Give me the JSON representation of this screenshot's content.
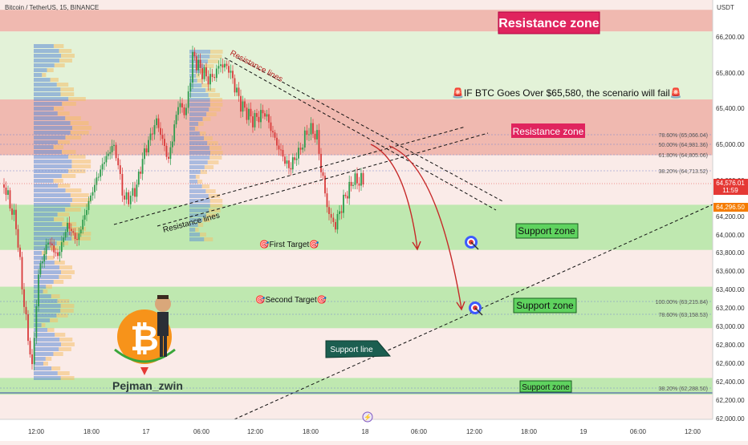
{
  "header": {
    "symbol_line": "Bitcoin / TetherUS, 15, BINANCE",
    "currency": "USDT"
  },
  "colors": {
    "resistance_band": "#f0b9b0",
    "support_band": "#bfe8b0",
    "up_candle": "#2e9c4d",
    "down_candle": "#d93a3a",
    "label_magenta": "#e0245e",
    "label_green": "#5fd35f",
    "arrow_red": "#c62828",
    "current_price_tag": "#e53935",
    "level_tag": "#f57c00"
  },
  "chart_data": {
    "type": "candlestick",
    "y_axis": {
      "range": [
        62000,
        66400
      ],
      "ticks": [
        "66,200.00",
        "65,800.00",
        "65,400.00",
        "65,000.00",
        "64,600.00",
        "64,200.00",
        "64,000.00",
        "63,800.00",
        "63,600.00",
        "63,400.00",
        "63,200.00",
        "63,000.00",
        "62,800.00",
        "62,600.00",
        "62,400.00",
        "62,200.00",
        "62,000.00"
      ]
    },
    "x_axis": {
      "tick_labels": [
        "12:00",
        "18:00",
        "17",
        "06:00",
        "12:00",
        "18:00",
        "18",
        "06:00",
        "12:00",
        "18:00",
        "19",
        "06:00",
        "12:00"
      ]
    },
    "price_tags": [
      {
        "price": "64,576.01",
        "sub": "11:59",
        "kind": "current"
      },
      {
        "price": "64,296.50",
        "sub": "",
        "kind": "level"
      }
    ],
    "zones": [
      {
        "kind": "resistance",
        "from": 66260,
        "to": 66500
      },
      {
        "kind": "resistance",
        "from": 64880,
        "to": 65500
      },
      {
        "kind": "support",
        "from": 63830,
        "to": 64330
      },
      {
        "kind": "support",
        "from": 62980,
        "to": 63430
      },
      {
        "kind": "support",
        "from": 62260,
        "to": 62440
      }
    ],
    "fib_levels": [
      {
        "label": "78.60% (65,066.04)",
        "price": 65066.04
      },
      {
        "label": "50.00% (64,981.36)",
        "price": 64981.36
      },
      {
        "label": "61.80% (64,805.06)",
        "price": 64805.06
      },
      {
        "label": "38.20% (64,713.52)",
        "price": 64713.52
      },
      {
        "label": "100.00% (63,215.84)",
        "price": 63215.84
      },
      {
        "label": "78.60% (63,158.53)",
        "price": 63158.53
      },
      {
        "label": "38.20% (62,288.50)",
        "price": 62288.5
      }
    ],
    "annotations": {
      "resistance_zone_top": "Resistance zone",
      "resistance_zone_mid": "Resistance zone",
      "warning": "🚨IF BTC Goes Over $65,580, the scenario will fail🚨",
      "resistance_lines_top": "Resistance lines",
      "resistance_lines_bottom": "Resistance lines",
      "first_target": "🎯First Target🎯",
      "second_target": "🎯Second Target🎯",
      "support_zone_1": "Support zone",
      "support_zone_2": "Support zone",
      "support_zone_3": "Support zone",
      "support_line": "Support line",
      "author": "Pejman_zwin"
    }
  }
}
